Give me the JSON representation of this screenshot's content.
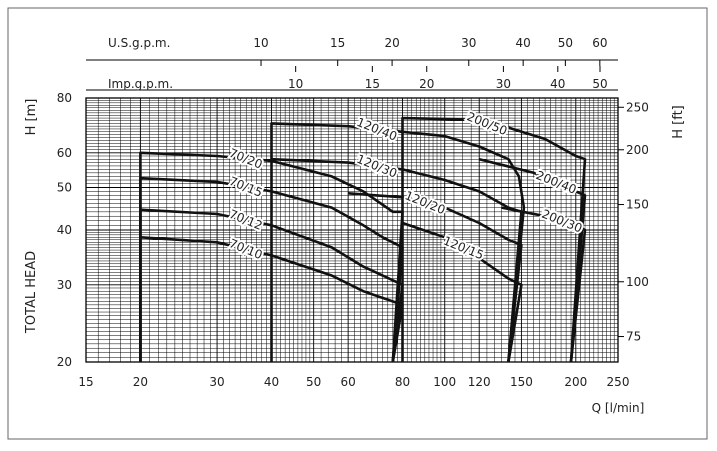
{
  "chart_data": {
    "type": "line",
    "title": "",
    "xlabel": "Q [l/min]",
    "ylabel_left": "TOTAL HEAD",
    "ylabel_left_unit": "H [m]",
    "ylabel_right": "H [ft]",
    "x_scale": "log",
    "y_scale": "log",
    "xlim": [
      15,
      250
    ],
    "ylim": [
      20,
      80
    ],
    "grid": true,
    "x_ticks": [
      15,
      20,
      30,
      40,
      50,
      60,
      80,
      100,
      120,
      150,
      200,
      250
    ],
    "y_ticks_left": [
      20,
      30,
      40,
      50,
      60,
      80
    ],
    "y_ticks_right_ft": [
      75,
      100,
      150,
      200,
      250
    ],
    "top_scales": [
      {
        "label": "U.S.g.p.m.",
        "ticks": [
          10,
          15,
          20,
          30,
          40,
          50,
          60
        ],
        "lpm_per_unit": 3.785
      },
      {
        "label": "Imp.g.p.m.",
        "ticks": [
          10,
          15,
          20,
          30,
          40,
          50
        ],
        "lpm_per_unit": 4.546
      }
    ],
    "series": [
      {
        "name": "70/20",
        "x": [
          20,
          30,
          40,
          55,
          65,
          76,
          80,
          76
        ],
        "y": [
          60,
          59,
          57.5,
          53,
          49,
          44,
          44,
          20
        ]
      },
      {
        "name": "70/15",
        "x": [
          20,
          30,
          40,
          55,
          65,
          72,
          80,
          76
        ],
        "y": [
          52.5,
          51.5,
          49,
          45,
          41,
          38.5,
          36.5,
          20
        ]
      },
      {
        "name": "70/12",
        "x": [
          20,
          30,
          40,
          55,
          65,
          72,
          80,
          76
        ],
        "y": [
          44.5,
          43.5,
          41,
          36.5,
          33,
          31.5,
          30,
          20
        ]
      },
      {
        "name": "70/10",
        "x": [
          20,
          30,
          40,
          55,
          65,
          72,
          80,
          76
        ],
        "y": [
          38.5,
          37.5,
          35,
          31.5,
          29,
          28,
          27,
          20
        ]
      },
      {
        "name": "120/40",
        "x": [
          40,
          60,
          80,
          100,
          120,
          140,
          148,
          152,
          140
        ],
        "y": [
          70,
          69,
          67,
          65.5,
          62,
          58,
          53,
          45,
          20
        ]
      },
      {
        "name": "120/30",
        "x": [
          40,
          60,
          80,
          100,
          120,
          140,
          150,
          140
        ],
        "y": [
          58,
          57,
          55,
          52,
          49,
          45,
          44,
          20
        ]
      },
      {
        "name": "120/20",
        "x": [
          60,
          80,
          100,
          120,
          140,
          150,
          140
        ],
        "y": [
          48.5,
          47.5,
          45,
          41.5,
          38,
          37,
          20
        ]
      },
      {
        "name": "120/15",
        "x": [
          80,
          100,
          120,
          140,
          150,
          140
        ],
        "y": [
          41.5,
          38.5,
          34.5,
          31,
          30,
          20
        ]
      },
      {
        "name": "200/50",
        "x": [
          80,
          110,
          140,
          170,
          200,
          210,
          195
        ],
        "y": [
          72,
          71.5,
          68.5,
          64.5,
          59,
          58,
          20
        ]
      },
      {
        "name": "200/40",
        "x": [
          120,
          160,
          200,
          210,
          195
        ],
        "y": [
          58,
          54,
          49,
          48,
          20
        ]
      },
      {
        "name": "200/30",
        "x": [
          135,
          170,
          200,
          210,
          195
        ],
        "y": [
          45,
          43,
          41,
          40,
          20
        ]
      }
    ]
  }
}
